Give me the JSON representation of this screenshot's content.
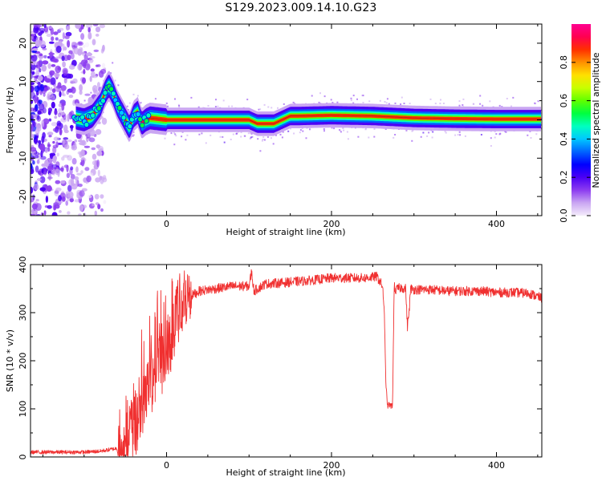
{
  "page": {
    "title": "S129.2023.009.14.10.G23"
  },
  "chart_data": [
    {
      "type": "heatmap",
      "xlabel": "Height of straight line (km)",
      "ylabel": "Frequency (Hz)",
      "xlim": [
        -165,
        455
      ],
      "ylim": [
        -25,
        25
      ],
      "xticks": [
        0,
        200,
        400
      ],
      "yticks": [
        -20,
        -10,
        0,
        10,
        20
      ],
      "colorbar": {
        "label": "Normalized spectral amplitude",
        "range": [
          0,
          1
        ],
        "ticks": [
          0.0,
          0.2,
          0.4,
          0.6,
          0.8
        ],
        "colors": [
          "#f4ecfb",
          "#caa6f2",
          "#8c3cf0",
          "#4b00f5",
          "#0000ff",
          "#0064ff",
          "#00c8ff",
          "#00ffc0",
          "#00ff40",
          "#60ff00",
          "#c8ff00",
          "#ffe000",
          "#ff9000",
          "#ff3000",
          "#ff0050",
          "#ff0090"
        ]
      },
      "track": {
        "x": [
          -110,
          -100,
          -90,
          -80,
          -75,
          -70,
          -65,
          -60,
          -55,
          -50,
          -45,
          -40,
          -35,
          -30,
          -25,
          -20,
          0,
          50,
          100,
          110,
          130,
          150,
          160,
          200,
          250,
          300,
          350,
          400,
          455
        ],
        "y": [
          0.5,
          0.0,
          1.0,
          4.0,
          7.0,
          9.0,
          7.0,
          4.0,
          2.0,
          0.0,
          -2.0,
          1.0,
          2.0,
          -1.0,
          0.0,
          0.5,
          0.0,
          0.0,
          0.0,
          -1.0,
          -1.0,
          1.0,
          1.0,
          1.2,
          1.0,
          0.5,
          0.3,
          0.2,
          0.2
        ]
      }
    },
    {
      "type": "line",
      "xlabel": "Height of straight line (km)",
      "ylabel": "SNR (10 * v/v)",
      "xlim": [
        -165,
        455
      ],
      "ylim": [
        0,
        400
      ],
      "xticks": [
        0,
        200,
        400
      ],
      "yticks": [
        0,
        100,
        200,
        300,
        400
      ],
      "color": "#f03030",
      "series": [
        {
          "x": [
            -165,
            -140,
            -120,
            -100,
            -80,
            -60,
            -50,
            -40,
            -30,
            -20,
            -10,
            0,
            10,
            20,
            30,
            40,
            60,
            80,
            100,
            103,
            106,
            120,
            140,
            160,
            180,
            200,
            220,
            240,
            255,
            262,
            264,
            266,
            268,
            270,
            272,
            274,
            276,
            278,
            280,
            285,
            290,
            292,
            294,
            296,
            300,
            320,
            340,
            360,
            380,
            400,
            420,
            440,
            455
          ],
          "y": [
            10,
            10,
            10,
            10,
            12,
            18,
            30,
            60,
            120,
            170,
            200,
            230,
            290,
            320,
            335,
            345,
            350,
            355,
            355,
            385,
            345,
            360,
            362,
            365,
            368,
            372,
            372,
            372,
            375,
            355,
            300,
            150,
            105,
            110,
            105,
            108,
            355,
            345,
            350,
            352,
            350,
            270,
            300,
            350,
            348,
            348,
            345,
            345,
            345,
            342,
            342,
            340,
            330
          ]
        }
      ]
    }
  ]
}
